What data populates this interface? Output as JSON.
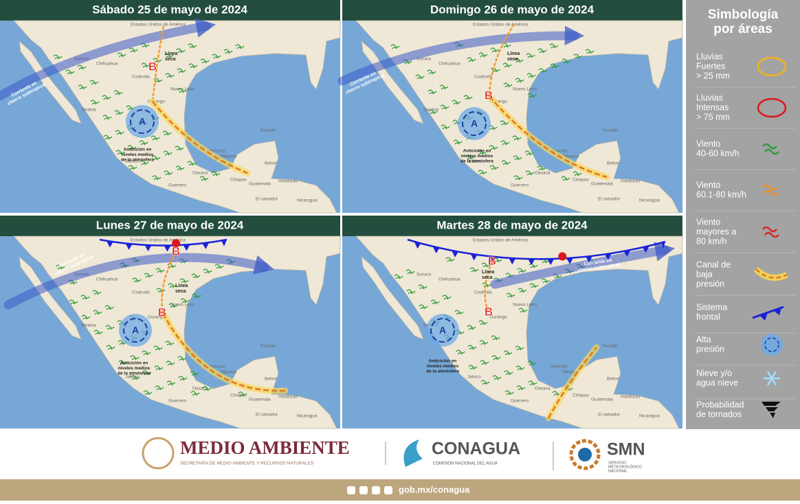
{
  "panels": [
    {
      "title": "Sábado 25 de mayo de 2024"
    },
    {
      "title": "Domingo 26 de mayo de 2024"
    },
    {
      "title": "Lunes 27 de mayo de 2024"
    },
    {
      "title": "Martes 28 de mayo de 2024"
    }
  ],
  "map": {
    "usa": "Estados Unidos de América",
    "dry_line": [
      "Línea",
      "seca"
    ],
    "jet": [
      "Corriente en",
      "chorro subtropical"
    ],
    "anticyclone": [
      "Anticiclón en",
      "niveles medios",
      "de la atmósfera"
    ],
    "high": "A",
    "low": "B",
    "places": [
      "Sonora",
      "Chihuahua",
      "Coahuila",
      "Nuevo León",
      "Sinaloa",
      "Durango",
      "Jalisco",
      "Guerrero",
      "Oaxaca",
      "Veracruz",
      "Chiapas",
      "Tabasco",
      "Yucatán",
      "Belice",
      "Guatemala",
      "Honduras",
      "El salvador",
      "Nicaragua"
    ]
  },
  "legend": {
    "title": [
      "Simbología",
      "por áreas"
    ],
    "items": [
      [
        "Lluvias",
        "Fuertes",
        "> 25 mm"
      ],
      [
        "Lluvias",
        "Intensas",
        "> 75 mm"
      ],
      [
        "Viento",
        "40-60 km/h"
      ],
      [
        "Viento",
        "60.1-80 km/h"
      ],
      [
        "Viento",
        "mayores a",
        "80 km/h"
      ],
      [
        "Canal de",
        "baja",
        "presión"
      ],
      [
        "Sistema",
        "frontal"
      ],
      [
        "Alta",
        "presión"
      ],
      [
        "Nieve y/o",
        "agua nieve"
      ],
      [
        "Probabilidad",
        "de tornados"
      ]
    ]
  },
  "footer": {
    "ministry": "MEDIO AMBIENTE",
    "ministry_sub": "SECRETARÍA DE MEDIO AMBIENTE Y RECURSOS NATURALES",
    "agency": "CONAGUA",
    "agency_sub": "COMISIÓN NACIONAL DEL AGUA",
    "service": "SMN",
    "service_sub": [
      "SERVICIO",
      "METEOROLÓGICO",
      "NACIONAL"
    ],
    "url": "gob.mx/conagua"
  }
}
